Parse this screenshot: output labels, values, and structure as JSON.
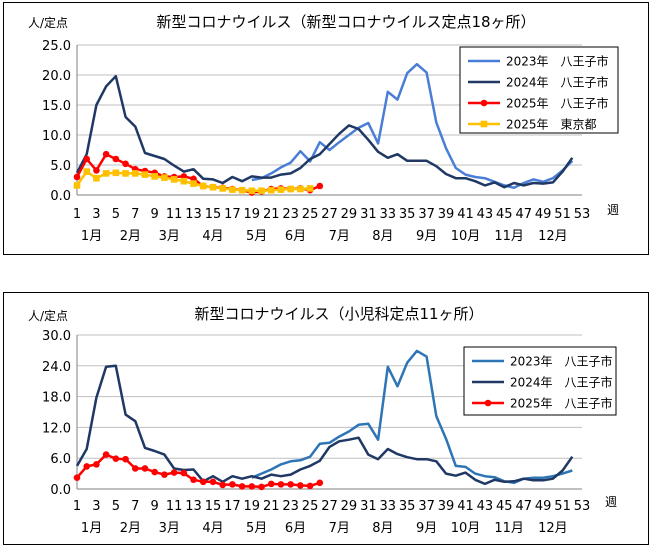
{
  "chart_data": [
    {
      "type": "line",
      "title": "新型コロナウイルス（新型コロナウイルス定点18ヶ所）",
      "ylabel": "人/定点",
      "xlabel": "週",
      "ylim": [
        0,
        25
      ],
      "yticks": [
        "0.0",
        "5.0",
        "10.0",
        "15.0",
        "20.0",
        "25.0"
      ],
      "xticks": [
        "1",
        "3",
        "5",
        "7",
        "9",
        "11",
        "13",
        "15",
        "17",
        "19",
        "21",
        "23",
        "25",
        "27",
        "29",
        "31",
        "33",
        "35",
        "37",
        "39",
        "41",
        "43",
        "45",
        "47",
        "49",
        "51",
        "53"
      ],
      "months": [
        "1月",
        "2月",
        "3月",
        "4月",
        "5月",
        "6月",
        "7月",
        "8月",
        "9月",
        "10月",
        "11月",
        "12月"
      ],
      "grid": true,
      "legend_position": "top-right",
      "series": [
        {
          "name": "2023年　八王子市",
          "color": "#4a7ed6",
          "marker": "none",
          "x": [
            19,
            20,
            21,
            22,
            23,
            24,
            25,
            26,
            27,
            28,
            29,
            30,
            31,
            32,
            33,
            34,
            35,
            36,
            37,
            38,
            39,
            40,
            41,
            42,
            43,
            44,
            45,
            46,
            47,
            48,
            49,
            50,
            51,
            52
          ],
          "values": [
            2.5,
            2.8,
            3.6,
            4.6,
            5.4,
            7.3,
            5.6,
            8.8,
            7.5,
            8.8,
            10.0,
            11.2,
            12.0,
            8.6,
            17.2,
            15.9,
            20.3,
            21.8,
            20.4,
            12.1,
            7.8,
            4.5,
            3.4,
            3.0,
            2.8,
            2.2,
            1.6,
            1.2,
            2.0,
            2.6,
            2.2,
            2.8,
            4.1,
            5.7
          ]
        },
        {
          "name": "2024年　八王子市",
          "color": "#1f3864",
          "marker": "none",
          "x": [
            1,
            2,
            3,
            4,
            5,
            6,
            7,
            8,
            9,
            10,
            11,
            12,
            13,
            14,
            15,
            16,
            17,
            18,
            19,
            20,
            21,
            22,
            23,
            24,
            25,
            26,
            27,
            28,
            29,
            30,
            31,
            32,
            33,
            34,
            35,
            36,
            37,
            38,
            39,
            40,
            41,
            42,
            43,
            44,
            45,
            46,
            47,
            48,
            49,
            50,
            51,
            52
          ],
          "values": [
            3.7,
            6.8,
            15.0,
            18.1,
            19.8,
            13.0,
            11.4,
            7.0,
            6.5,
            6.0,
            4.9,
            3.9,
            4.3,
            2.7,
            2.6,
            2.0,
            3.0,
            2.3,
            3.1,
            2.9,
            2.9,
            3.4,
            3.6,
            4.5,
            6.0,
            6.8,
            8.5,
            10.2,
            11.6,
            11.0,
            9.2,
            7.2,
            6.2,
            6.8,
            5.7,
            5.7,
            5.7,
            4.8,
            3.5,
            2.8,
            2.8,
            2.3,
            1.6,
            2.1,
            1.3,
            2.0,
            1.6,
            2.0,
            1.9,
            2.1,
            3.9,
            6.2
          ]
        },
        {
          "name": "2025年　八王子市",
          "color": "#ff0000",
          "marker": "circle",
          "x": [
            1,
            2,
            3,
            4,
            5,
            6,
            7,
            8,
            9,
            10,
            11,
            12,
            13,
            14,
            15,
            16,
            17,
            18,
            19,
            20,
            21,
            22,
            23,
            24,
            25,
            26
          ],
          "values": [
            3.0,
            6.0,
            4.1,
            6.8,
            6.0,
            5.2,
            4.3,
            4.0,
            3.7,
            3.1,
            3.0,
            3.1,
            2.7,
            1.5,
            1.3,
            1.2,
            1.0,
            0.8,
            0.4,
            0.6,
            1.0,
            1.1,
            1.0,
            1.1,
            0.8,
            1.5
          ]
        },
        {
          "name": "2025年　東京都",
          "color": "#ffc000",
          "marker": "square",
          "x": [
            1,
            2,
            3,
            4,
            5,
            6,
            7,
            8,
            9,
            10,
            11,
            12,
            13,
            14,
            15,
            16,
            17,
            18,
            19,
            20,
            21,
            22,
            23,
            24,
            25
          ],
          "values": [
            1.6,
            3.9,
            2.8,
            3.6,
            3.7,
            3.6,
            3.6,
            3.4,
            3.1,
            2.9,
            2.6,
            2.3,
            1.9,
            1.5,
            1.3,
            1.1,
            0.9,
            0.8,
            0.7,
            0.7,
            0.8,
            0.9,
            1.0,
            1.0,
            1.1
          ]
        }
      ]
    },
    {
      "type": "line",
      "title": "新型コロナウイルス（小児科定点11ヶ所）",
      "ylabel": "人/定点",
      "xlabel": "週",
      "ylim": [
        0,
        30
      ],
      "yticks": [
        "0.0",
        "6.0",
        "12.0",
        "18.0",
        "24.0",
        "30.0"
      ],
      "xticks": [
        "1",
        "3",
        "5",
        "7",
        "9",
        "11",
        "13",
        "15",
        "17",
        "19",
        "21",
        "23",
        "25",
        "27",
        "29",
        "31",
        "33",
        "35",
        "37",
        "39",
        "41",
        "43",
        "45",
        "47",
        "49",
        "51",
        "53"
      ],
      "months": [
        "1月",
        "2月",
        "3月",
        "4月",
        "5月",
        "6月",
        "7月",
        "8月",
        "9月",
        "10月",
        "11月",
        "12月"
      ],
      "grid": true,
      "legend_position": "top-right",
      "series": [
        {
          "name": "2023年　八王子市",
          "color": "#2e75b6",
          "marker": "none",
          "x": [
            19,
            20,
            21,
            22,
            23,
            24,
            25,
            26,
            27,
            28,
            29,
            30,
            31,
            32,
            33,
            34,
            35,
            36,
            37,
            38,
            39,
            40,
            41,
            42,
            43,
            44,
            45,
            46,
            47,
            48,
            49,
            50,
            51,
            52
          ],
          "values": [
            2.2,
            3.0,
            3.8,
            4.8,
            5.4,
            5.6,
            6.3,
            8.8,
            9.0,
            10.2,
            11.2,
            12.5,
            12.7,
            9.6,
            23.8,
            20.0,
            24.6,
            26.9,
            25.8,
            14.2,
            9.8,
            4.5,
            4.3,
            3.0,
            2.5,
            2.3,
            1.5,
            1.2,
            2.0,
            2.2,
            2.2,
            2.5,
            3.0,
            3.6
          ]
        },
        {
          "name": "2024年　八王子市",
          "color": "#1f3864",
          "marker": "none",
          "x": [
            1,
            2,
            3,
            4,
            5,
            6,
            7,
            8,
            9,
            10,
            11,
            12,
            13,
            14,
            15,
            16,
            17,
            18,
            19,
            20,
            21,
            22,
            23,
            24,
            25,
            26,
            27,
            28,
            29,
            30,
            31,
            32,
            33,
            34,
            35,
            36,
            37,
            38,
            39,
            40,
            41,
            42,
            43,
            44,
            45,
            46,
            47,
            48,
            49,
            50,
            51,
            52
          ],
          "values": [
            4.5,
            7.8,
            17.8,
            23.8,
            24.0,
            14.5,
            13.2,
            8.0,
            7.4,
            6.7,
            4.0,
            3.7,
            3.8,
            1.5,
            2.5,
            1.4,
            2.5,
            2.0,
            2.5,
            2.0,
            2.8,
            2.5,
            2.8,
            3.8,
            4.5,
            5.5,
            8.2,
            9.3,
            9.6,
            10.0,
            6.7,
            5.8,
            7.8,
            6.8,
            6.2,
            5.8,
            5.8,
            5.4,
            3.0,
            2.6,
            3.2,
            1.8,
            1.0,
            1.8,
            1.4,
            1.5,
            2.0,
            1.7,
            1.7,
            2.0,
            3.6,
            6.3
          ]
        },
        {
          "name": "2025年　八王子市",
          "color": "#ff0000",
          "marker": "circle",
          "x": [
            1,
            2,
            3,
            4,
            5,
            6,
            7,
            8,
            9,
            10,
            11,
            12,
            13,
            14,
            15,
            16,
            17,
            18,
            19,
            20,
            21,
            22,
            23,
            24,
            25,
            26
          ],
          "values": [
            2.2,
            4.4,
            4.8,
            6.7,
            5.9,
            5.8,
            4.0,
            4.0,
            3.3,
            2.8,
            3.2,
            3.1,
            1.8,
            1.4,
            1.4,
            0.8,
            0.9,
            0.5,
            0.5,
            0.4,
            1.0,
            0.9,
            0.9,
            0.7,
            0.6,
            1.2
          ]
        }
      ]
    }
  ]
}
